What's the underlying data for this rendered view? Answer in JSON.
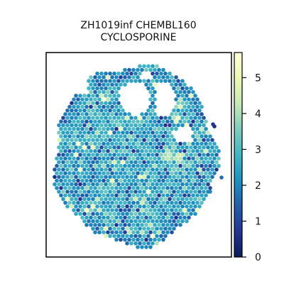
{
  "chart_data": {
    "type": "scatter",
    "title_lines": [
      "ZH1019inf CHEMBL160",
      "CYCLOSPORINE"
    ],
    "xlabel": "",
    "ylabel": "",
    "grid": false,
    "legend": "none",
    "colorbar": {
      "position": "right",
      "min": 0,
      "max": 5.7,
      "ticks": [
        0,
        1,
        2,
        3,
        4,
        5
      ],
      "tick_labels": [
        "0",
        "1",
        "2",
        "3",
        "4",
        "5"
      ],
      "colormap": "YlGnBu",
      "colormap_stops": [
        "#081d58",
        "#253494",
        "#225ea8",
        "#1d91c0",
        "#41b6c4",
        "#7fcdbb",
        "#c7e9b4",
        "#edf8b1",
        "#ffffd9"
      ]
    },
    "spots": {
      "description_of_values": "expression level per spot",
      "value_range": [
        0,
        5.7
      ],
      "typical_range": [
        1.5,
        3.5
      ]
    }
  }
}
